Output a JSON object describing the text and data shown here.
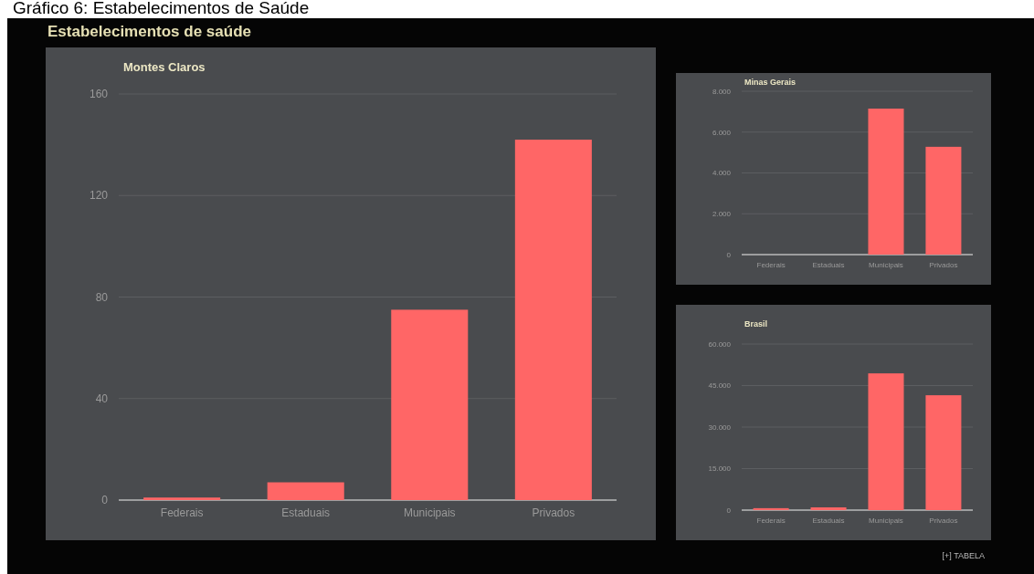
{
  "chart_data": [
    {
      "type": "other",
      "title": "Gráfico 6: Estabelecimentos de Saúde",
      "subtitle": "Estabelecimentos de saúde",
      "annotations": [
        "[+] TABELA"
      ]
    },
    {
      "type": "bar",
      "title": "Montes Claros",
      "categories": [
        "Federais",
        "Estaduais",
        "Municipais",
        "Privados"
      ],
      "values": [
        1,
        7,
        75,
        142
      ],
      "color": "#ff6666",
      "ylim": [
        0,
        160
      ],
      "yticks": [
        0,
        40,
        80,
        120,
        160
      ],
      "grid": "y"
    },
    {
      "type": "bar",
      "title": "Minas Gerais",
      "categories": [
        "Federais",
        "Estaduais",
        "Municipais",
        "Privados"
      ],
      "values": [
        null,
        null,
        7150,
        5280
      ],
      "color": "#ff6666",
      "ylim": [
        0,
        8000
      ],
      "yticks": [
        0,
        {
          "value": 2000,
          "label": "2.000"
        },
        {
          "value": 4000,
          "label": "4.000"
        },
        {
          "value": 6000,
          "label": "6.000"
        },
        {
          "value": 8000,
          "label": "8.000"
        }
      ],
      "grid": "y"
    },
    {
      "type": "bar",
      "title": "Brasil",
      "categories": [
        "Federais",
        "Estaduais",
        "Municipais",
        "Privados"
      ],
      "values": [
        700,
        1000,
        49400,
        41500
      ],
      "color": "#ff6666",
      "ylim": [
        0,
        60000
      ],
      "yticks": [
        0,
        {
          "value": 15000,
          "label": "15.000"
        },
        {
          "value": 30000,
          "label": "30.000"
        },
        {
          "value": 45000,
          "label": "45.000"
        },
        {
          "value": 60000,
          "label": "60.000"
        }
      ],
      "grid": "y"
    }
  ]
}
